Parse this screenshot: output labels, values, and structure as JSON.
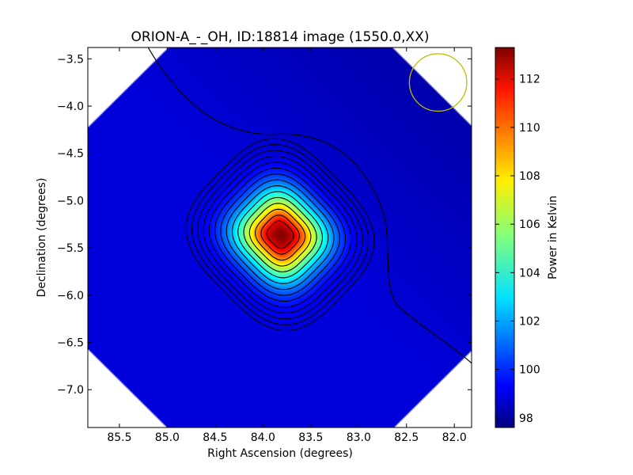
{
  "chart_data": {
    "type": "heatmap",
    "title": "ORION-A_-_OH, ID:18814 image (1550.0,XX)",
    "xlabel": "Right Ascension (degrees)",
    "ylabel": "Declination (degrees)",
    "xlim": [
      85.83,
      81.82
    ],
    "ylim": [
      -7.4,
      -3.38
    ],
    "x_ticks": [
      85.5,
      85.0,
      84.5,
      84.0,
      83.5,
      83.0,
      82.5,
      82.0
    ],
    "x_tick_labels": [
      "85.5",
      "85.0",
      "84.5",
      "84.0",
      "83.5",
      "83.0",
      "82.5",
      "82.0"
    ],
    "y_ticks": [
      -3.5,
      -4.0,
      -4.5,
      -5.0,
      -5.5,
      -6.0,
      -6.5,
      -7.0
    ],
    "y_tick_labels": [
      "−3.5",
      "−4.0",
      "−4.5",
      "−5.0",
      "−5.5",
      "−6.0",
      "−6.5",
      "−7.0"
    ],
    "colorbar": {
      "label": "Power in Kelvin",
      "min": 97.6,
      "max": 113.3,
      "ticks": [
        98,
        100,
        102,
        104,
        106,
        108,
        110,
        112
      ],
      "tick_labels": [
        "98",
        "100",
        "102",
        "104",
        "106",
        "108",
        "110",
        "112"
      ],
      "colormap": "jet"
    },
    "source_peak": {
      "ra": 83.82,
      "dec": -5.36,
      "value": 113.2
    },
    "background_level": 99.0,
    "beam": {
      "ra_center": 82.17,
      "dec_center": -3.75,
      "radius_deg": 0.3,
      "color": "#bcbc00"
    },
    "contour_color": "#000000",
    "grid": false
  }
}
